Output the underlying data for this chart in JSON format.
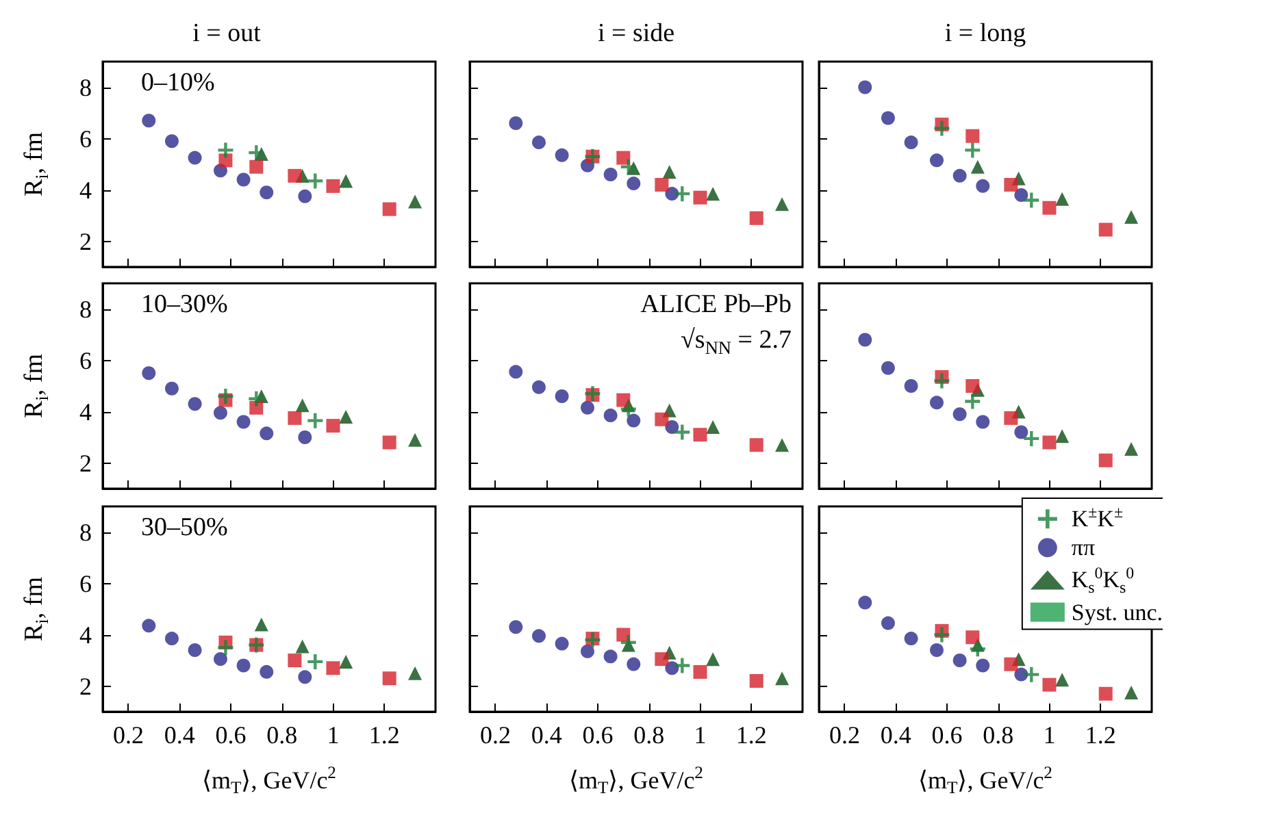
{
  "chart_data": [
    {
      "type": "scatter",
      "title": "i = out",
      "ylabel": "R$_{i}$, fm",
      "annotations": [
        "0–10%"
      ],
      "xlim": [
        0.1,
        1.4
      ],
      "ylim": [
        1,
        9
      ],
      "xticks": [
        0.2,
        0.4,
        0.6,
        0.8,
        1,
        1.2
      ],
      "yticks": [
        2,
        4,
        6,
        8
      ],
      "tick_labels": "y",
      "grid": false,
      "legend": false,
      "series": [
        {
          "marker": "cross",
          "color": "#1a7f3a",
          "x": [
            0.58,
            0.7,
            0.93
          ],
          "values": [
            5.55,
            5.45,
            4.35
          ]
        },
        {
          "marker": "circle",
          "color": "#2b2a8c",
          "x": [
            0.28,
            0.37,
            0.46,
            0.56,
            0.65,
            0.74,
            0.89
          ],
          "values": [
            6.7,
            5.9,
            5.25,
            4.75,
            4.4,
            3.9,
            3.75
          ]
        },
        {
          "marker": "triangle",
          "color": "#0a4d14",
          "x": [
            0.72,
            0.88,
            1.05,
            1.32
          ],
          "values": [
            5.4,
            4.55,
            4.35,
            3.55
          ]
        },
        {
          "marker": "square",
          "color": "#d4202a",
          "x": [
            0.58,
            0.7,
            0.85,
            1.0,
            1.22
          ],
          "values": [
            5.15,
            4.9,
            4.55,
            4.15,
            3.25
          ]
        }
      ]
    },
    {
      "type": "scatter",
      "title": "i = side",
      "xlim": [
        0.1,
        1.4
      ],
      "ylim": [
        1,
        9
      ],
      "xticks": [
        0.2,
        0.4,
        0.6,
        0.8,
        1,
        1.2
      ],
      "yticks": [
        2,
        4,
        6,
        8
      ],
      "tick_labels": false,
      "grid": false,
      "legend": false,
      "series": [
        {
          "marker": "cross",
          "color": "#1a7f3a",
          "x": [
            0.58,
            0.72,
            0.93
          ],
          "values": [
            5.3,
            4.9,
            3.85
          ]
        },
        {
          "marker": "circle",
          "color": "#2b2a8c",
          "x": [
            0.28,
            0.37,
            0.46,
            0.56,
            0.65,
            0.74,
            0.89
          ],
          "values": [
            6.6,
            5.85,
            5.35,
            4.95,
            4.6,
            4.25,
            3.85
          ]
        },
        {
          "marker": "triangle",
          "color": "#0a4d14",
          "x": [
            0.74,
            0.88,
            1.05,
            1.32
          ],
          "values": [
            4.85,
            4.7,
            3.85,
            3.45
          ]
        },
        {
          "marker": "square",
          "color": "#d4202a",
          "x": [
            0.58,
            0.7,
            0.85,
            1.0,
            1.22
          ],
          "values": [
            5.3,
            5.25,
            4.2,
            3.7,
            2.9
          ]
        }
      ]
    },
    {
      "type": "scatter",
      "title": "i = long",
      "xlim": [
        0.1,
        1.4
      ],
      "ylim": [
        1,
        9
      ],
      "xticks": [
        0.2,
        0.4,
        0.6,
        0.8,
        1,
        1.2
      ],
      "yticks": [
        2,
        4,
        6,
        8
      ],
      "tick_labels": false,
      "grid": false,
      "legend": false,
      "series": [
        {
          "marker": "cross",
          "color": "#1a7f3a",
          "x": [
            0.58,
            0.7,
            0.93
          ],
          "values": [
            6.4,
            5.55,
            3.6
          ]
        },
        {
          "marker": "circle",
          "color": "#2b2a8c",
          "x": [
            0.28,
            0.37,
            0.46,
            0.56,
            0.65,
            0.74,
            0.89
          ],
          "values": [
            8.0,
            6.8,
            5.85,
            5.15,
            4.55,
            4.15,
            3.8
          ]
        },
        {
          "marker": "triangle",
          "color": "#0a4d14",
          "x": [
            0.72,
            0.88,
            1.05,
            1.32
          ],
          "values": [
            4.9,
            4.45,
            3.65,
            2.95
          ]
        },
        {
          "marker": "square",
          "color": "#d4202a",
          "x": [
            0.58,
            0.7,
            0.85,
            1.0,
            1.22
          ],
          "values": [
            6.55,
            6.1,
            4.2,
            3.3,
            2.45
          ]
        }
      ]
    },
    {
      "type": "scatter",
      "ylabel": "R$_{i}$, fm",
      "annotations": [
        "10–30%"
      ],
      "xlim": [
        0.1,
        1.4
      ],
      "ylim": [
        1,
        9
      ],
      "xticks": [
        0.2,
        0.4,
        0.6,
        0.8,
        1,
        1.2
      ],
      "yticks": [
        2,
        4,
        6,
        8
      ],
      "tick_labels": "y",
      "grid": false,
      "legend": false,
      "series": [
        {
          "marker": "cross",
          "color": "#1a7f3a",
          "x": [
            0.58,
            0.7,
            0.93
          ],
          "values": [
            4.6,
            4.5,
            3.65
          ]
        },
        {
          "marker": "circle",
          "color": "#2b2a8c",
          "x": [
            0.28,
            0.37,
            0.46,
            0.56,
            0.65,
            0.74,
            0.89
          ],
          "values": [
            5.5,
            4.9,
            4.3,
            3.95,
            3.6,
            3.15,
            3.0
          ]
        },
        {
          "marker": "triangle",
          "color": "#0a4d14",
          "x": [
            0.72,
            0.88,
            1.05,
            1.32
          ],
          "values": [
            4.6,
            4.25,
            3.8,
            2.9
          ]
        },
        {
          "marker": "square",
          "color": "#d4202a",
          "x": [
            0.58,
            0.7,
            0.85,
            1.0,
            1.22
          ],
          "values": [
            4.45,
            4.15,
            3.75,
            3.45,
            2.8
          ]
        }
      ]
    },
    {
      "type": "scatter",
      "annotations": [
        "ALICE Pb–Pb",
        "√s$_{NN}$ = 2.7"
      ],
      "xlim": [
        0.1,
        1.4
      ],
      "ylim": [
        1,
        9
      ],
      "xticks": [
        0.2,
        0.4,
        0.6,
        0.8,
        1,
        1.2
      ],
      "yticks": [
        2,
        4,
        6,
        8
      ],
      "tick_labels": false,
      "grid": false,
      "legend": false,
      "series": [
        {
          "marker": "cross",
          "color": "#1a7f3a",
          "x": [
            0.58,
            0.72,
            0.93
          ],
          "values": [
            4.7,
            4.1,
            3.2
          ]
        },
        {
          "marker": "circle",
          "color": "#2b2a8c",
          "x": [
            0.28,
            0.37,
            0.46,
            0.56,
            0.65,
            0.74,
            0.89
          ],
          "values": [
            5.55,
            4.95,
            4.6,
            4.15,
            3.85,
            3.65,
            3.4
          ]
        },
        {
          "marker": "triangle",
          "color": "#0a4d14",
          "x": [
            0.72,
            0.88,
            1.05,
            1.32
          ],
          "values": [
            4.25,
            4.05,
            3.4,
            2.7
          ]
        },
        {
          "marker": "square",
          "color": "#d4202a",
          "x": [
            0.58,
            0.7,
            0.85,
            1.0,
            1.22
          ],
          "values": [
            4.65,
            4.45,
            3.7,
            3.1,
            2.7
          ]
        }
      ]
    },
    {
      "type": "scatter",
      "xlim": [
        0.1,
        1.4
      ],
      "ylim": [
        1,
        9
      ],
      "xticks": [
        0.2,
        0.4,
        0.6,
        0.8,
        1,
        1.2
      ],
      "yticks": [
        2,
        4,
        6,
        8
      ],
      "tick_labels": false,
      "grid": false,
      "legend": false,
      "series": [
        {
          "marker": "cross",
          "color": "#1a7f3a",
          "x": [
            0.58,
            0.7,
            0.93
          ],
          "values": [
            5.2,
            4.4,
            2.95
          ]
        },
        {
          "marker": "circle",
          "color": "#2b2a8c",
          "x": [
            0.28,
            0.37,
            0.46,
            0.56,
            0.65,
            0.74,
            0.89
          ],
          "values": [
            6.8,
            5.7,
            5.0,
            4.35,
            3.9,
            3.6,
            3.2
          ]
        },
        {
          "marker": "triangle",
          "color": "#0a4d14",
          "x": [
            0.72,
            0.88,
            1.05,
            1.32
          ],
          "values": [
            4.85,
            4.0,
            3.05,
            2.55
          ]
        },
        {
          "marker": "square",
          "color": "#d4202a",
          "x": [
            0.58,
            0.7,
            0.85,
            1.0,
            1.22
          ],
          "values": [
            5.35,
            5.0,
            3.75,
            2.8,
            2.1
          ]
        }
      ]
    },
    {
      "type": "scatter",
      "ylabel": "R$_{i}$, fm",
      "xlabel": "⟨m$_{T}$⟩, GeV/c$^{2}$",
      "annotations": [
        "30–50%"
      ],
      "xlim": [
        0.1,
        1.4
      ],
      "ylim": [
        1,
        9
      ],
      "xticks": [
        0.2,
        0.4,
        0.6,
        0.8,
        1,
        1.2
      ],
      "yticks": [
        2,
        4,
        6,
        8
      ],
      "grid": false,
      "legend": false,
      "series": [
        {
          "marker": "cross",
          "color": "#1a7f3a",
          "x": [
            0.58,
            0.7,
            0.93
          ],
          "values": [
            3.5,
            3.6,
            2.95
          ]
        },
        {
          "marker": "circle",
          "color": "#2b2a8c",
          "x": [
            0.28,
            0.37,
            0.46,
            0.56,
            0.65,
            0.74,
            0.89
          ],
          "values": [
            4.35,
            3.85,
            3.4,
            3.05,
            2.8,
            2.55,
            2.35
          ]
        },
        {
          "marker": "triangle",
          "color": "#0a4d14",
          "x": [
            0.72,
            0.88,
            1.05,
            1.32
          ],
          "values": [
            4.4,
            3.55,
            2.95,
            2.5
          ]
        },
        {
          "marker": "square",
          "color": "#d4202a",
          "x": [
            0.58,
            0.7,
            0.85,
            1.0,
            1.22
          ],
          "values": [
            3.7,
            3.6,
            3.0,
            2.7,
            2.3
          ]
        }
      ]
    },
    {
      "type": "scatter",
      "xlabel": "⟨m$_{T}$⟩, GeV/c$^{2}$",
      "xlim": [
        0.1,
        1.4
      ],
      "ylim": [
        1,
        9
      ],
      "xticks": [
        0.2,
        0.4,
        0.6,
        0.8,
        1,
        1.2
      ],
      "yticks": [
        2,
        4,
        6,
        8
      ],
      "tick_labels": "x",
      "grid": false,
      "legend": false,
      "series": [
        {
          "marker": "cross",
          "color": "#1a7f3a",
          "x": [
            0.58,
            0.72,
            0.93
          ],
          "values": [
            3.8,
            3.7,
            2.8
          ]
        },
        {
          "marker": "circle",
          "color": "#2b2a8c",
          "x": [
            0.28,
            0.37,
            0.46,
            0.56,
            0.65,
            0.74,
            0.89
          ],
          "values": [
            4.3,
            3.95,
            3.65,
            3.35,
            3.15,
            2.85,
            2.7
          ]
        },
        {
          "marker": "triangle",
          "color": "#0a4d14",
          "x": [
            0.72,
            0.88,
            1.05,
            1.32
          ],
          "values": [
            3.6,
            3.3,
            3.05,
            2.3
          ]
        },
        {
          "marker": "square",
          "color": "#d4202a",
          "x": [
            0.58,
            0.7,
            0.85,
            1.0,
            1.22
          ],
          "values": [
            3.85,
            4.0,
            3.05,
            2.55,
            2.2
          ]
        }
      ]
    },
    {
      "type": "scatter",
      "xlabel": "⟨m$_{T}$⟩, GeV/c$^{2}$",
      "xlim": [
        0.1,
        1.4
      ],
      "ylim": [
        1,
        9
      ],
      "xticks": [
        0.2,
        0.4,
        0.6,
        0.8,
        1,
        1.2
      ],
      "yticks": [
        2,
        4,
        6,
        8
      ],
      "tick_labels": "x",
      "grid": false,
      "legend": "top right",
      "series": [
        {
          "name": "K$^{±}$K$^{±}$",
          "marker": "cross",
          "color": "#1a7f3a",
          "x": [
            0.58,
            0.72,
            0.93
          ],
          "values": [
            4.0,
            3.45,
            2.45
          ]
        },
        {
          "name": "ππ",
          "marker": "circle",
          "color": "#2b2a8c",
          "x": [
            0.28,
            0.37,
            0.46,
            0.56,
            0.65,
            0.74,
            0.89
          ],
          "values": [
            5.25,
            4.45,
            3.85,
            3.4,
            3.0,
            2.8,
            2.45
          ]
        },
        {
          "name": "K$_{s}$$^{0}$K$_{s}$$^{0}$",
          "marker": "triangle",
          "color": "#0a4d14",
          "x": [
            0.72,
            0.88,
            1.05,
            1.32
          ],
          "values": [
            3.6,
            3.05,
            2.25,
            1.75
          ]
        },
        {
          "name": "Syst. unc.",
          "marker": "square",
          "color": "#22a050"
        },
        {
          "marker": "square",
          "color": "#d4202a",
          "x": [
            0.58,
            0.7,
            0.85,
            1.0,
            1.22
          ],
          "values": [
            4.15,
            3.9,
            2.85,
            2.05,
            1.7
          ]
        }
      ]
    }
  ]
}
